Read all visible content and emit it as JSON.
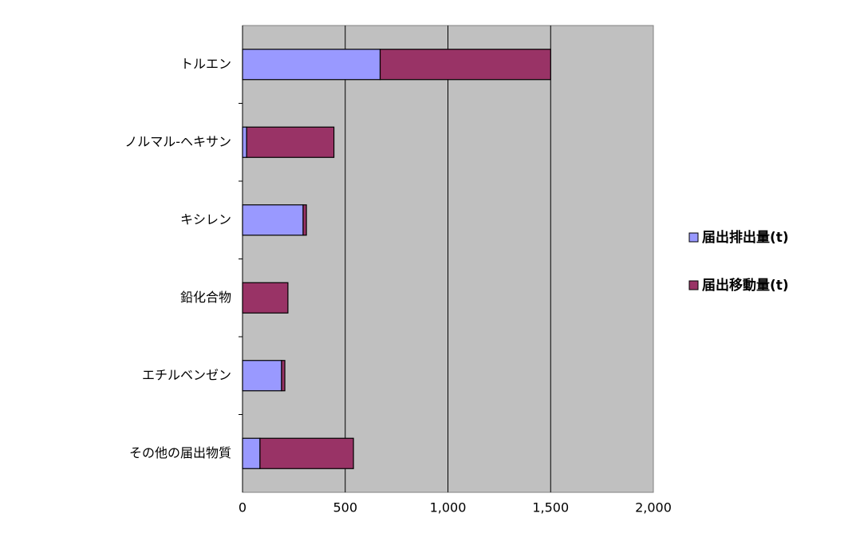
{
  "chart_data": {
    "type": "bar",
    "orientation": "horizontal",
    "stacked": true,
    "categories": [
      "トルエン",
      "ノルマル-ヘキサン",
      "キシレン",
      "鉛化合物",
      "エチルベンゼン",
      "その他の届出物質"
    ],
    "series": [
      {
        "name": "届出排出量(t)",
        "color": "#9999ff",
        "values": [
          670,
          20,
          295,
          0,
          190,
          85
        ]
      },
      {
        "name": "届出移動量(t)",
        "color": "#993366",
        "values": [
          830,
          425,
          16,
          221,
          16,
          455
        ]
      }
    ],
    "xlim": [
      0,
      2000
    ],
    "xticks": [
      0,
      500,
      {
        "value": 1000,
        "label": "1,000"
      },
      {
        "value": 1500,
        "label": "1,500"
      },
      {
        "value": 2000,
        "label": "2,000"
      }
    ],
    "grid": true,
    "legend": "right"
  }
}
